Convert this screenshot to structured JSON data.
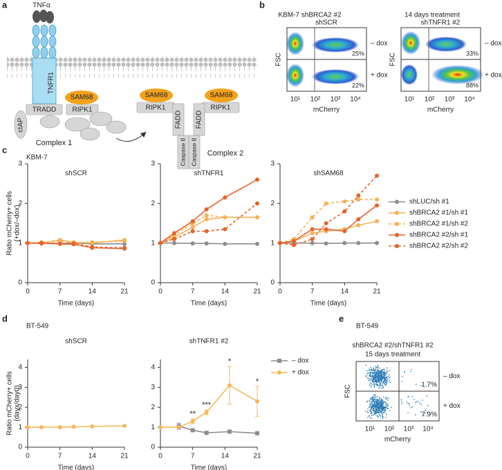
{
  "panel_labels": [
    "a",
    "b",
    "c",
    "d",
    "e"
  ],
  "diagram_a": {
    "ligand": "TNFα",
    "receptor": "TNFR1",
    "adaptor": "SAM68",
    "kinase": "RIPK1",
    "tradd": "TRADD",
    "ciap": "cIAP",
    "fadd": "FADD",
    "caspase": "Caspase 8",
    "complex1": "Complex 1",
    "complex2": "Complex 2"
  },
  "flow_b": {
    "title_left": "KBM-7 shBRCA2 #2",
    "title_right": "14 days treatment",
    "plots": [
      {
        "title": "shSCR",
        "percents": [
          "25%",
          "22%"
        ]
      },
      {
        "title": "shTNFR1 #2",
        "percents": [
          "33%",
          "88%"
        ]
      }
    ],
    "row_labels": [
      "– dox",
      "+ dox"
    ],
    "y_label": "FSC",
    "x_label": "mCherry",
    "x_tick_labels": [
      "10¹",
      "10²",
      "10³",
      "10⁴"
    ]
  },
  "row_c": {
    "cell_line": "KBM-7",
    "ylabel": [
      "Ratio mCherry+ cells",
      "(+dox/–dox)"
    ]
  },
  "row_d": {
    "cell_line": "BT-549",
    "ylabel": [
      "Ratio mCherry+ cells",
      "(dayx/day0)"
    ]
  },
  "chart_data": [
    {
      "type": "line",
      "title": "shSCR",
      "xlabel": "Time (days)",
      "x": [
        0,
        3,
        7,
        10,
        14,
        21
      ],
      "xlim": [
        0,
        21
      ],
      "xticks": [
        0,
        7,
        14,
        21
      ],
      "ylim": [
        0,
        3
      ],
      "yticks": [
        0,
        1,
        2,
        3
      ],
      "series": [
        {
          "color": "#8c8c8c",
          "values": [
            1,
            1,
            0.99,
            1,
            0.98,
            0.98
          ]
        },
        {
          "color": "#f6b155",
          "values": [
            1,
            1,
            1.08,
            1.02,
            1,
            1.08
          ]
        },
        {
          "color": "#f6b155",
          "dash": true,
          "values": [
            1,
            1.02,
            1.05,
            1,
            1.02,
            1.05
          ]
        },
        {
          "color": "#e6632b",
          "values": [
            1,
            1,
            0.98,
            0.97,
            0.88,
            0.86
          ]
        },
        {
          "color": "#e6632b",
          "dash": true,
          "values": [
            1,
            0.99,
            0.98,
            0.99,
            0.9,
            0.88
          ]
        }
      ]
    },
    {
      "type": "line",
      "title": "shTNFR1",
      "xlabel": "Time (days)",
      "x": [
        0,
        3,
        7,
        10,
        14,
        21
      ],
      "xlim": [
        0,
        21
      ],
      "xticks": [
        0,
        7,
        14,
        21
      ],
      "ylim": [
        0,
        3
      ],
      "yticks": [
        0,
        1,
        2,
        3
      ],
      "series": [
        {
          "color": "#8c8c8c",
          "values": [
            1,
            1,
            0.99,
            0.99,
            0.98,
            0.98
          ]
        },
        {
          "color": "#f6b155",
          "values": [
            1,
            1.15,
            1.4,
            1.6,
            1.65,
            1.65
          ]
        },
        {
          "color": "#f6b155",
          "dash": true,
          "values": [
            1,
            1.2,
            1.5,
            1.7,
            1.65,
            1.65
          ]
        },
        {
          "color": "#e6632b",
          "values": [
            1,
            1.25,
            1.55,
            1.85,
            2.15,
            2.6
          ]
        },
        {
          "color": "#e6632b",
          "dash": true,
          "values": [
            1,
            1.1,
            1.3,
            1.3,
            1.35,
            2
          ]
        }
      ]
    },
    {
      "type": "line",
      "title": "shSAM68",
      "xlabel": "Time (days)",
      "x": [
        0,
        3,
        7,
        10,
        14,
        17,
        21
      ],
      "xlim": [
        0,
        21
      ],
      "xticks": [
        0,
        7,
        14,
        21
      ],
      "ylim": [
        0,
        3
      ],
      "yticks": [
        0,
        1,
        2,
        3
      ],
      "legend": "right",
      "series": [
        {
          "name": "shLUC/sh #1",
          "color": "#8c8c8c",
          "values": [
            1,
            1,
            1,
            0.99,
            1,
            1,
            1
          ]
        },
        {
          "name": "shBRCA2 #1/sh #1",
          "color": "#f6b155",
          "values": [
            1,
            1.05,
            1.25,
            1.3,
            1.35,
            1.45,
            1.55
          ]
        },
        {
          "name": "shBRCA2 #1/sh #2",
          "color": "#f6b155",
          "dash": true,
          "values": [
            1,
            1.1,
            1.65,
            2,
            2.05,
            2.1,
            2.1
          ]
        },
        {
          "name": "shBRCA2 #2/sh #1",
          "color": "#e6632b",
          "values": [
            1,
            1.05,
            1.35,
            1.35,
            1.3,
            1.6,
            1.95
          ]
        },
        {
          "name": "shBRCA2 #2/sh #2",
          "color": "#e6632b",
          "dash": true,
          "values": [
            1,
            0.95,
            1.1,
            1.5,
            1.8,
            2.2,
            2.7
          ]
        }
      ]
    },
    {
      "type": "line",
      "title": "shSCR",
      "xlabel": "Time (days)",
      "xlim": [
        0,
        21
      ],
      "xticks": [
        0,
        7,
        14,
        21
      ],
      "ylim": [
        0,
        4.4
      ],
      "yticks": [
        0,
        1,
        2,
        3,
        4
      ],
      "series": [
        {
          "color": "#f7b75a",
          "x": [
            0,
            3,
            7,
            10,
            14,
            21
          ],
          "values": [
            1,
            1,
            1,
            1.02,
            1.04,
            1.07
          ]
        }
      ]
    },
    {
      "type": "line",
      "title": "shTNFR1 #2",
      "xlabel": "Time (days)",
      "xlim": [
        0,
        21
      ],
      "xticks": [
        0,
        7,
        14,
        21
      ],
      "ylim": [
        0,
        4.4
      ],
      "yticks": [
        0,
        1,
        2,
        3,
        4
      ],
      "legend": "right",
      "series": [
        {
          "name": "– dox",
          "color": "#8c8c8c",
          "marker": "square",
          "x": [
            4,
            7,
            10,
            15,
            21
          ],
          "values": [
            1.05,
            0.85,
            0.72,
            0.78,
            0.7
          ],
          "errors": [
            0.15,
            0.05,
            0.04,
            0.05,
            0.03
          ]
        },
        {
          "name": "+ dox",
          "color": "#f7b75a",
          "x": [
            0,
            4,
            7,
            10,
            15,
            21
          ],
          "values": [
            1,
            1,
            1.3,
            1.75,
            3.1,
            2.3
          ],
          "errors": [
            0,
            0.05,
            0.12,
            0.12,
            0.95,
            0.75
          ],
          "significance": [
            null,
            null,
            "**",
            "***",
            "*",
            "*"
          ]
        }
      ]
    }
  ],
  "flow_e": {
    "cell_line": "BT-549",
    "title": "shBRCA2 #2/shTNFR1 #2",
    "subtitle": "15 days treatment",
    "percents": [
      "1.7%",
      "7.9%"
    ],
    "row_labels": [
      "– dox",
      "+ dox"
    ],
    "y_label": "FSC",
    "x_label": "mCherry",
    "x_tick_labels": [
      "10¹",
      "10²",
      "10³",
      "10⁴"
    ]
  }
}
